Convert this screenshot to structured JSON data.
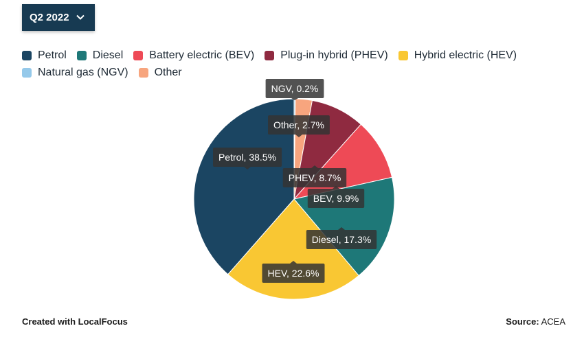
{
  "dropdown": {
    "selected": "Q2 2022"
  },
  "footer": {
    "credit": "Created with LocalFocus",
    "source_label": "Source:",
    "source_value": "ACEA"
  },
  "legend_rows": [
    [
      {
        "label": "Petrol",
        "color": "#1b4562"
      },
      {
        "label": "Diesel",
        "color": "#1e7878"
      },
      {
        "label": "Battery electric (BEV)",
        "color": "#ee4a56"
      },
      {
        "label": "Plug-in hybrid (PHEV)",
        "color": "#8f2a40"
      },
      {
        "label": "Hybrid electric (HEV)",
        "color": "#f9c733"
      }
    ],
    [
      {
        "label": "Natural gas (NGV)",
        "color": "#95c9ea"
      },
      {
        "label": "Other",
        "color": "#f7a57e"
      }
    ]
  ],
  "chart_data": {
    "type": "pie",
    "slices": [
      {
        "name": "Natural gas (NGV)",
        "value": 0.2,
        "label": "NGV, 0.2%",
        "color": "#95c9ea"
      },
      {
        "name": "Other",
        "value": 2.7,
        "label": "Other, 2.7%",
        "color": "#f7a57e"
      },
      {
        "name": "Plug-in hybrid (PHEV)",
        "value": 8.7,
        "label": "PHEV, 8.7%",
        "color": "#8f2a40"
      },
      {
        "name": "Battery electric (BEV)",
        "value": 9.9,
        "label": "BEV, 9.9%",
        "color": "#ee4a56"
      },
      {
        "name": "Diesel",
        "value": 17.3,
        "label": "Diesel, 17.3%",
        "color": "#1e7878"
      },
      {
        "name": "Hybrid electric (HEV)",
        "value": 22.6,
        "label": "HEV, 22.6%",
        "color": "#f9c733"
      },
      {
        "name": "Petrol",
        "value": 38.5,
        "label": "Petrol, 38.5%",
        "color": "#1b4562"
      }
    ],
    "legend_position": "top-left"
  }
}
